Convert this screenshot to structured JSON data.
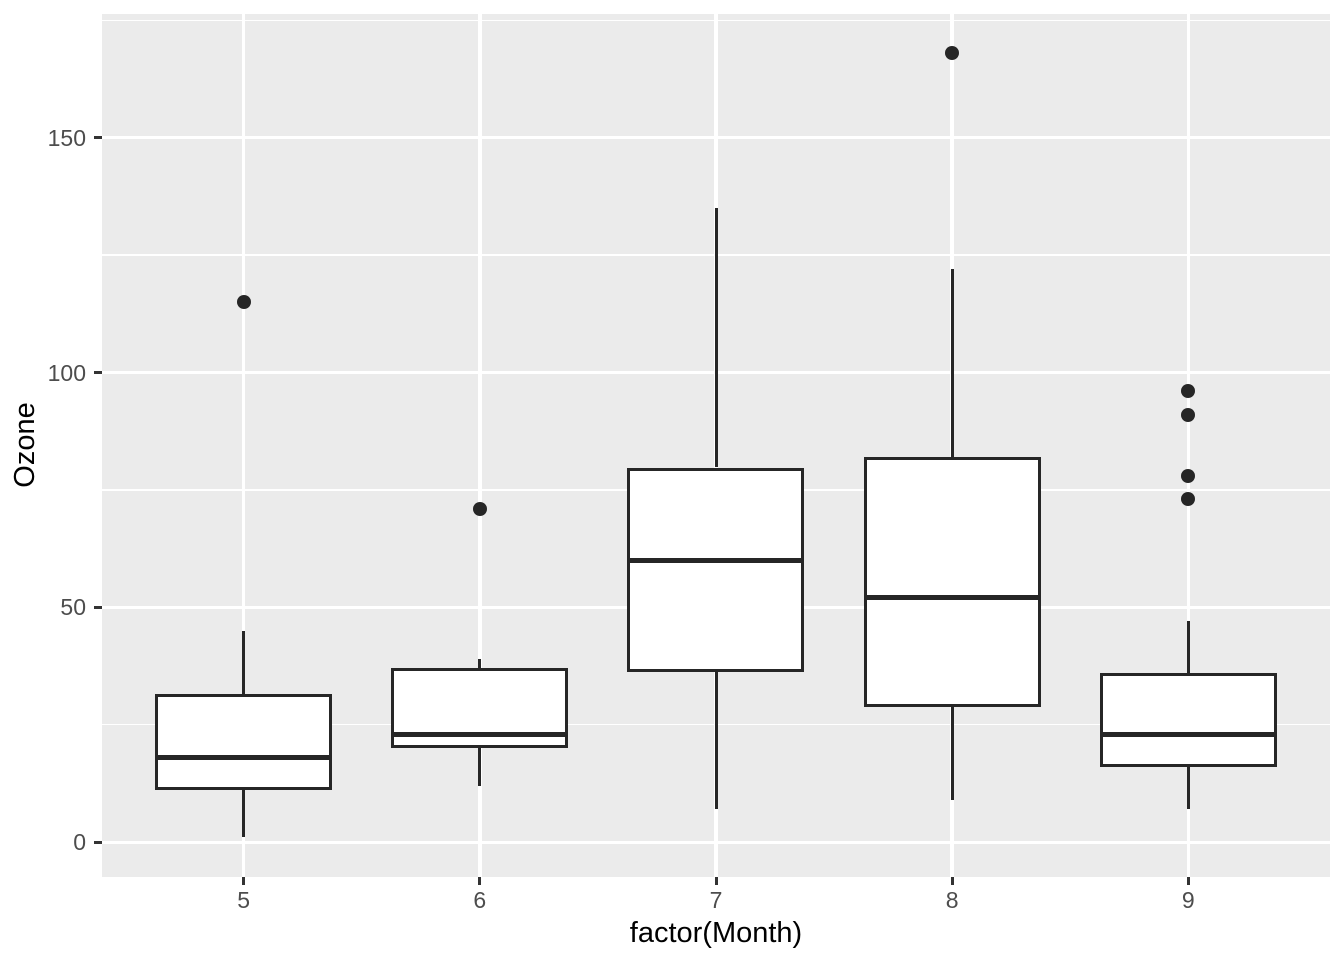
{
  "chart_data": {
    "type": "boxplot",
    "title": "",
    "xlabel": "factor(Month)",
    "ylabel": "Ozone",
    "categories": [
      "5",
      "6",
      "7",
      "8",
      "9"
    ],
    "series": [
      {
        "category": "5",
        "lower_whisker": 1,
        "q1": 11,
        "median": 18,
        "q3": 31.5,
        "upper_whisker": 45,
        "outliers": [
          115
        ]
      },
      {
        "category": "6",
        "lower_whisker": 12,
        "q1": 20,
        "median": 23,
        "q3": 37,
        "upper_whisker": 39,
        "outliers": [
          71
        ]
      },
      {
        "category": "7",
        "lower_whisker": 7,
        "q1": 36.25,
        "median": 60,
        "q3": 79.75,
        "upper_whisker": 135,
        "outliers": []
      },
      {
        "category": "8",
        "lower_whisker": 9,
        "q1": 28.75,
        "median": 52,
        "q3": 82,
        "upper_whisker": 122,
        "outliers": [
          168
        ]
      },
      {
        "category": "9",
        "lower_whisker": 7,
        "q1": 16,
        "median": 23,
        "q3": 36,
        "upper_whisker": 47,
        "outliers": [
          96,
          91,
          78,
          73
        ]
      }
    ],
    "y_major_ticks": [
      0,
      50,
      100,
      150
    ],
    "y_minor_gridlines": [
      25,
      75,
      125,
      175
    ],
    "ylim": [
      -7.35,
      176.35
    ],
    "grid": "white major and minor horizontal lines, white vertical line per category, on grey panel",
    "legend": "none",
    "colors": {
      "panel_background": "#EBEBEB",
      "gridline": "#FFFFFF",
      "box_stroke": "#262626",
      "box_fill": "#FFFFFF",
      "outlier_point": "#262626",
      "axis_text": "#4D4D4D",
      "axis_title": "#000000",
      "tick_mark": "#333333",
      "figure_background": "#FFFFFF"
    }
  }
}
